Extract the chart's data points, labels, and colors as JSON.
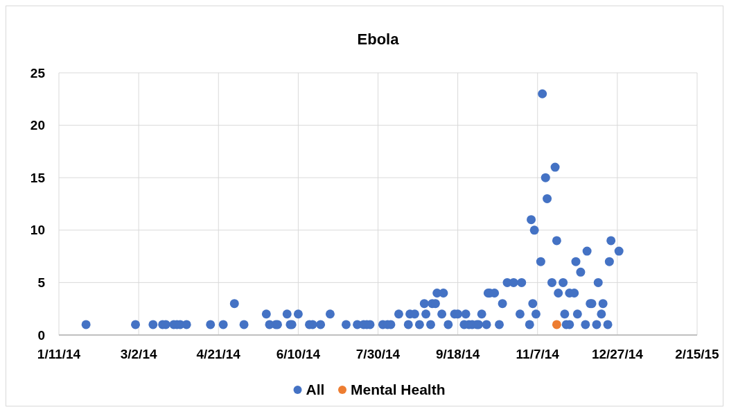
{
  "chart_data": {
    "type": "scatter",
    "title": "Ebola",
    "marker": "circle",
    "grid": true,
    "legend": "bottom",
    "xlim": [
      "2014-01-11",
      "2015-02-15"
    ],
    "xticks": [
      {
        "value": "2014-01-11",
        "label": "1/11/14"
      },
      {
        "value": "2014-03-02",
        "label": "3/2/14"
      },
      {
        "value": "2014-04-21",
        "label": "4/21/14"
      },
      {
        "value": "2014-06-10",
        "label": "6/10/14"
      },
      {
        "value": "2014-07-30",
        "label": "7/30/14"
      },
      {
        "value": "2014-09-18",
        "label": "9/18/14"
      },
      {
        "value": "2014-11-07",
        "label": "11/7/14"
      },
      {
        "value": "2014-12-27",
        "label": "12/27/14"
      },
      {
        "value": "2015-02-15",
        "label": "2/15/15"
      }
    ],
    "ylim": [
      0,
      25
    ],
    "yticks": [
      0,
      5,
      10,
      15,
      20,
      25
    ],
    "series": [
      {
        "name": "All",
        "color": "#4472c4",
        "x": [
          "2014-01-28",
          "2014-02-28",
          "2014-03-11",
          "2014-03-17",
          "2014-03-19",
          "2014-03-24",
          "2014-03-26",
          "2014-03-28",
          "2014-04-01",
          "2014-04-16",
          "2014-04-24",
          "2014-05-01",
          "2014-05-07",
          "2014-05-21",
          "2014-05-23",
          "2014-05-27",
          "2014-05-28",
          "2014-06-03",
          "2014-06-05",
          "2014-06-06",
          "2014-06-10",
          "2014-06-17",
          "2014-06-19",
          "2014-06-24",
          "2014-06-30",
          "2014-07-10",
          "2014-07-17",
          "2014-07-21",
          "2014-07-23",
          "2014-07-25",
          "2014-08-02",
          "2014-08-05",
          "2014-08-07",
          "2014-08-12",
          "2014-08-18",
          "2014-08-19",
          "2014-08-22",
          "2014-08-25",
          "2014-08-28",
          "2014-08-29",
          "2014-09-01",
          "2014-09-02",
          "2014-09-04",
          "2014-09-05",
          "2014-09-08",
          "2014-09-09",
          "2014-09-12",
          "2014-09-16",
          "2014-09-18",
          "2014-09-22",
          "2014-09-23",
          "2014-09-25",
          "2014-09-27",
          "2014-09-30",
          "2014-10-01",
          "2014-10-03",
          "2014-10-06",
          "2014-10-07",
          "2014-10-08",
          "2014-10-11",
          "2014-10-14",
          "2014-10-16",
          "2014-10-19",
          "2014-10-23",
          "2014-10-27",
          "2014-10-28",
          "2014-11-02",
          "2014-11-03",
          "2014-11-04",
          "2014-11-05",
          "2014-11-06",
          "2014-11-09",
          "2014-11-10",
          "2014-11-12",
          "2014-11-13",
          "2014-11-16",
          "2014-11-18",
          "2014-11-19",
          "2014-11-20",
          "2014-11-23",
          "2014-11-24",
          "2014-11-25",
          "2014-11-27",
          "2014-11-27",
          "2014-11-30",
          "2014-12-01",
          "2014-12-02",
          "2014-12-04",
          "2014-12-07",
          "2014-12-08",
          "2014-12-10",
          "2014-12-11",
          "2014-12-14",
          "2014-12-15",
          "2014-12-17",
          "2014-12-18",
          "2014-12-21",
          "2014-12-22",
          "2014-12-23",
          "2014-12-28"
        ],
        "values": [
          1,
          1,
          1,
          1,
          1,
          1,
          1,
          1,
          1,
          1,
          1,
          3,
          1,
          2,
          1,
          1,
          1,
          2,
          1,
          1,
          2,
          1,
          1,
          1,
          2,
          1,
          1,
          1,
          1,
          1,
          1,
          1,
          1,
          2,
          1,
          2,
          2,
          1,
          3,
          2,
          1,
          3,
          3,
          4,
          2,
          4,
          1,
          2,
          2,
          1,
          2,
          1,
          1,
          1,
          1,
          2,
          1,
          4,
          4,
          4,
          1,
          3,
          5,
          5,
          2,
          5,
          1,
          11,
          3,
          10,
          2,
          7,
          23,
          15,
          13,
          5,
          16,
          9,
          4,
          5,
          2,
          1,
          1,
          4,
          4,
          7,
          2,
          6,
          1,
          8,
          3,
          3,
          1,
          5,
          2,
          3,
          1,
          7,
          9,
          8
        ]
      },
      {
        "name": "Mental Health",
        "color": "#ed7d31",
        "x": [
          "2014-11-19"
        ],
        "values": [
          1
        ]
      }
    ]
  }
}
